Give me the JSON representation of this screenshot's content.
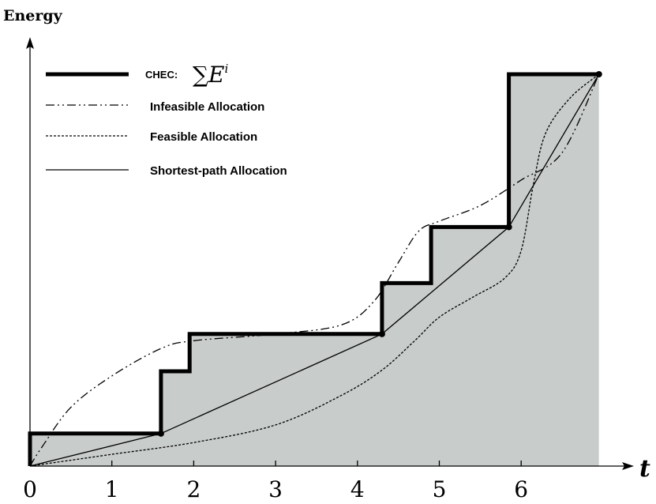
{
  "chart_data": {
    "type": "line",
    "ylabel": "Energy",
    "xlabel": "t",
    "x_ticks": [
      "0",
      "1",
      "2",
      "3",
      "4",
      "5",
      "6"
    ],
    "xlim": [
      0,
      7
    ],
    "ylim": [
      0,
      1
    ],
    "fill_color": "#c8ccca",
    "series": [
      {
        "name": "CHEC:",
        "formula": "∑E",
        "formula_superscript": "i",
        "style": "thick-solid",
        "x": [
          0,
          0,
          1.6,
          1.6,
          1.95,
          1.95,
          4.3,
          4.3,
          4.9,
          4.9,
          5.85,
          5.85,
          6.95
        ],
        "y": [
          0,
          0.083,
          0.083,
          0.242,
          0.242,
          0.337,
          0.337,
          0.467,
          0.467,
          0.61,
          0.61,
          1.0,
          1.0
        ]
      },
      {
        "name": "Infeasible Allocation",
        "style": "dash-dot-dot",
        "x": [
          0,
          0.15,
          0.5,
          1.0,
          1.6,
          2.0,
          3.0,
          3.8,
          4.2,
          4.5,
          4.75,
          5.0,
          5.5,
          6.0,
          6.5,
          6.95
        ],
        "y": [
          0,
          0.05,
          0.15,
          0.23,
          0.3,
          0.32,
          0.337,
          0.36,
          0.42,
          0.52,
          0.6,
          0.625,
          0.665,
          0.73,
          0.8,
          1.0
        ]
      },
      {
        "name": "Feasible Allocation",
        "style": "dotted",
        "x": [
          0,
          1.0,
          2.0,
          3.0,
          3.8,
          4.3,
          4.7,
          5.0,
          5.4,
          5.8,
          6.0,
          6.15,
          6.3,
          6.6,
          6.95
        ],
        "y": [
          0,
          0.03,
          0.06,
          0.105,
          0.18,
          0.245,
          0.32,
          0.38,
          0.43,
          0.48,
          0.55,
          0.72,
          0.85,
          0.94,
          1.0
        ]
      },
      {
        "name": "Shortest-path Allocation",
        "style": "thin-solid",
        "x": [
          0,
          1.6,
          4.3,
          5.85,
          6.95
        ],
        "y": [
          0,
          0.083,
          0.337,
          0.61,
          1.0
        ]
      }
    ],
    "markers": [
      {
        "x": 1.6,
        "y": 0.083
      },
      {
        "x": 4.3,
        "y": 0.337
      },
      {
        "x": 5.85,
        "y": 0.61
      },
      {
        "x": 6.95,
        "y": 1.0
      }
    ]
  }
}
